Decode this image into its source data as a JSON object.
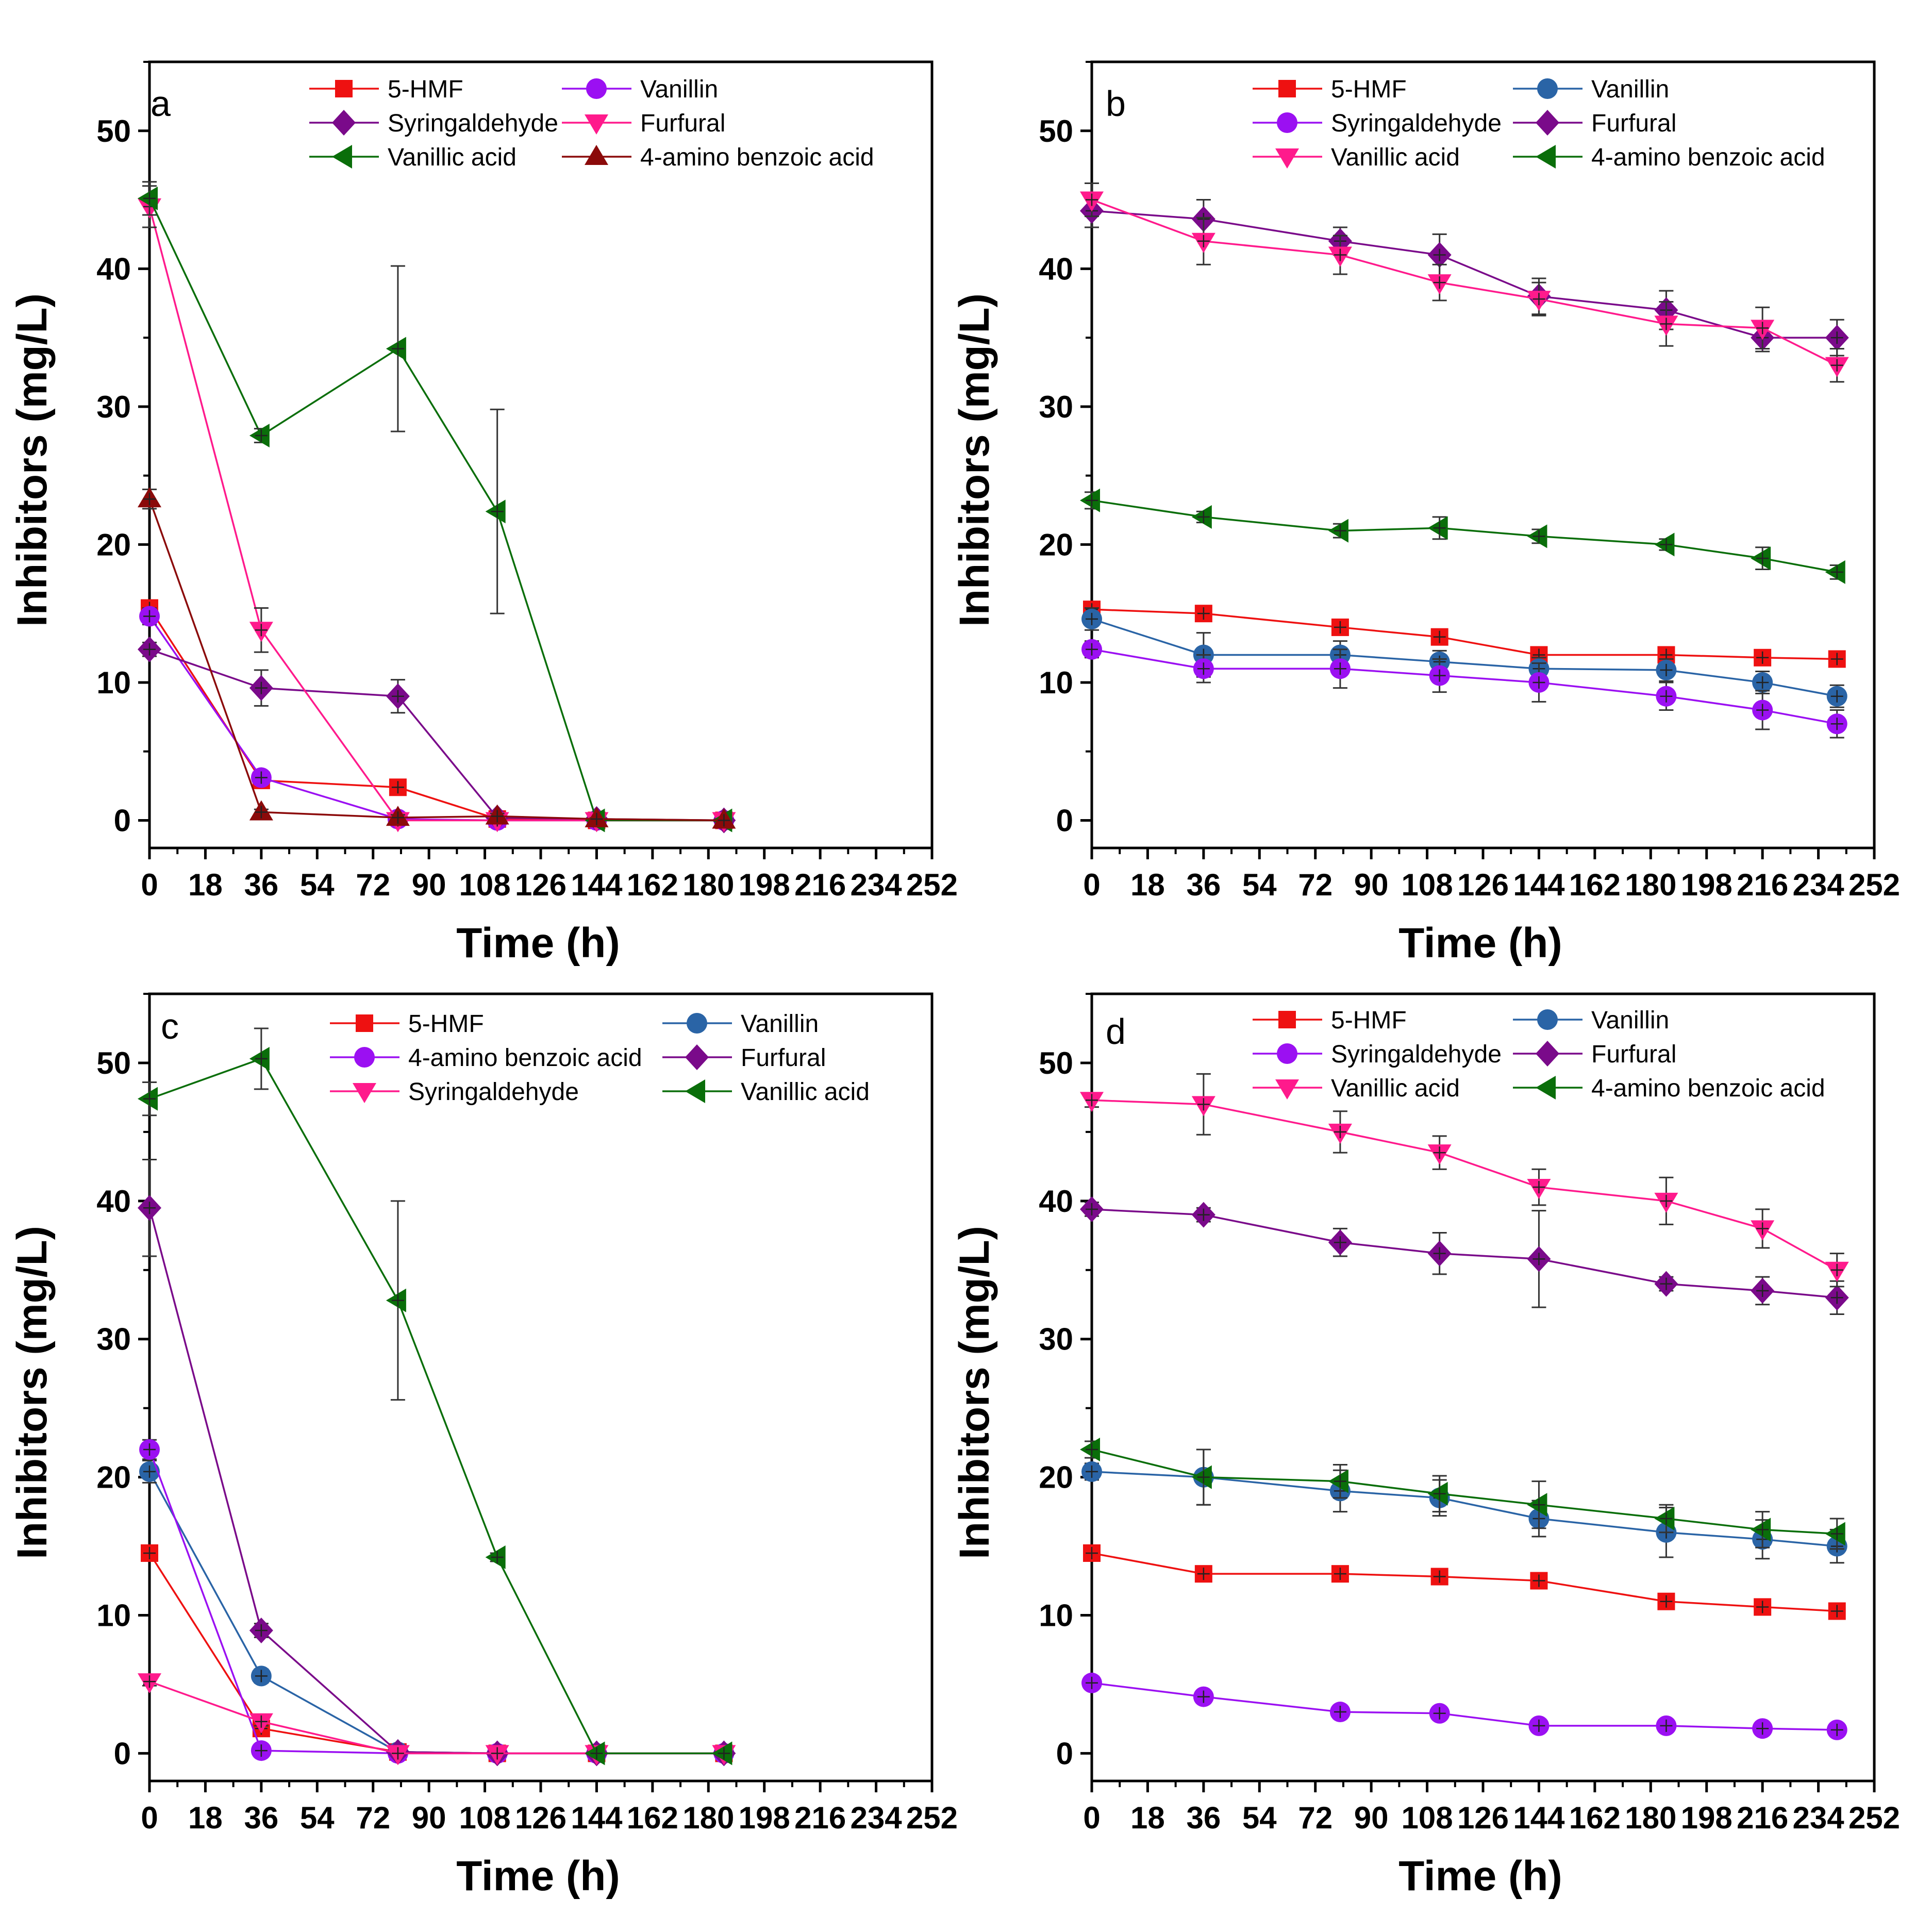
{
  "figure": {
    "colors": {
      "red": "#ee1111",
      "violet": "#9b10f2",
      "purple": "#7a0a8a",
      "pink": "#ff1a8c",
      "green": "#0a6e0a",
      "darkred": "#8b0a0a",
      "blue": "#2a64a6"
    }
  },
  "chart_data": [
    {
      "panel": "a",
      "type": "line",
      "xlabel": "Time (h)",
      "ylabel": "Inhibitors (mg/L)",
      "xlim": [
        0,
        252
      ],
      "ylim": [
        -2,
        55
      ],
      "xticks": [
        "0",
        "18",
        "36",
        "54",
        "72",
        "90",
        "108",
        "126",
        "144",
        "162",
        "180",
        "198",
        "216",
        "234",
        "252"
      ],
      "yticks": [
        "0",
        "10",
        "20",
        "30",
        "40",
        "50"
      ],
      "legend_position": "top",
      "series": [
        {
          "name": "5-HMF",
          "color": "red",
          "marker": "square",
          "x": [
            0,
            36,
            80,
            112,
            144,
            185
          ],
          "y": [
            15.4,
            2.9,
            2.4,
            0.1,
            0,
            0
          ],
          "err": [
            0.5,
            0.4,
            0.3,
            0.1,
            0.1,
            0.1
          ]
        },
        {
          "name": "Vanillin",
          "color": "violet",
          "marker": "circle",
          "x": [
            0,
            36,
            80,
            112,
            144,
            185
          ],
          "y": [
            14.8,
            3.1,
            0.1,
            0,
            0,
            0
          ],
          "err": [
            0.6,
            0.4,
            0.1,
            0.1,
            0.1,
            0.1
          ]
        },
        {
          "name": "Syringaldehyde",
          "color": "purple",
          "marker": "diamond",
          "x": [
            0,
            36,
            80,
            112,
            144,
            185
          ],
          "y": [
            12.4,
            9.6,
            9.0,
            0.2,
            0.1,
            0
          ],
          "err": [
            0.5,
            1.3,
            1.2,
            0.2,
            0.1,
            0.1
          ]
        },
        {
          "name": "Furfural",
          "color": "pink",
          "marker": "tri-down",
          "x": [
            0,
            36,
            80,
            112,
            144,
            185
          ],
          "y": [
            44.5,
            13.8,
            0,
            0,
            0,
            0
          ],
          "err": [
            1.5,
            1.6,
            0.1,
            0.1,
            0.1,
            0.1
          ]
        },
        {
          "name": "Vanillic acid",
          "color": "green",
          "marker": "tri-left",
          "x": [
            0,
            36,
            80,
            112,
            144,
            185
          ],
          "y": [
            45.1,
            27.9,
            34.2,
            22.4,
            0,
            0
          ],
          "err": [
            1.2,
            0.5,
            6.0,
            7.4,
            0.1,
            0.1
          ]
        },
        {
          "name": "4-amino benzoic acid",
          "color": "darkred",
          "marker": "tri-up",
          "x": [
            0,
            36,
            80,
            112,
            144,
            185
          ],
          "y": [
            23.3,
            0.6,
            0.2,
            0.3,
            0.1,
            0
          ],
          "err": [
            0.7,
            0.2,
            0.2,
            0.2,
            0.1,
            0.1
          ]
        }
      ]
    },
    {
      "panel": "b",
      "type": "line",
      "xlabel": "Time (h)",
      "ylabel": "Inhibitors (mg/L)",
      "xlim": [
        0,
        252
      ],
      "ylim": [
        -2,
        55
      ],
      "xticks": [
        "0",
        "18",
        "36",
        "54",
        "72",
        "90",
        "108",
        "126",
        "144",
        "162",
        "180",
        "198",
        "216",
        "234",
        "252"
      ],
      "yticks": [
        "0",
        "10",
        "20",
        "30",
        "40",
        "50"
      ],
      "legend_position": "top",
      "series": [
        {
          "name": "5-HMF",
          "color": "red",
          "marker": "square",
          "x": [
            0,
            36,
            80,
            112,
            144,
            185,
            216,
            240
          ],
          "y": [
            15.3,
            15.0,
            14.0,
            13.3,
            12.0,
            12.0,
            11.8,
            11.7
          ],
          "err": [
            0.5,
            0.5,
            0.5,
            0.5,
            0.4,
            0.5,
            0.4,
            0.4
          ]
        },
        {
          "name": "Vanillin",
          "color": "blue",
          "marker": "circle",
          "x": [
            0,
            36,
            80,
            112,
            144,
            185,
            216,
            240
          ],
          "y": [
            14.6,
            12.0,
            12.0,
            11.5,
            11.0,
            10.9,
            10.0,
            9.0
          ],
          "err": [
            0.8,
            1.6,
            1.0,
            0.8,
            0.8,
            0.8,
            0.8,
            0.8
          ]
        },
        {
          "name": "Syringaldehyde",
          "color": "violet",
          "marker": "circle",
          "x": [
            0,
            36,
            80,
            112,
            144,
            185,
            216,
            240
          ],
          "y": [
            12.4,
            11.0,
            11.0,
            10.5,
            10.0,
            9.0,
            8.0,
            7.0
          ],
          "err": [
            0.6,
            1.0,
            1.4,
            1.2,
            1.4,
            1.0,
            1.4,
            1.0
          ]
        },
        {
          "name": "Furfural",
          "color": "purple",
          "marker": "diamond",
          "x": [
            0,
            36,
            80,
            112,
            144,
            185,
            216,
            240
          ],
          "y": [
            44.2,
            43.6,
            42.0,
            41.0,
            38.0,
            37.0,
            35.0,
            35.0
          ],
          "err": [
            1.2,
            1.4,
            1.0,
            1.5,
            1.3,
            1.4,
            1.0,
            1.3
          ]
        },
        {
          "name": "Vanillic acid",
          "color": "pink",
          "marker": "tri-down",
          "x": [
            0,
            36,
            80,
            112,
            144,
            185,
            216,
            240
          ],
          "y": [
            45.0,
            42.0,
            41.0,
            39.0,
            37.8,
            36.0,
            35.7,
            33.0
          ],
          "err": [
            1.2,
            1.7,
            1.4,
            1.3,
            1.2,
            1.6,
            1.5,
            1.2
          ]
        },
        {
          "name": "4-amino benzoic acid",
          "color": "green",
          "marker": "tri-left",
          "x": [
            0,
            36,
            80,
            112,
            144,
            185,
            216,
            240
          ],
          "y": [
            23.2,
            22.0,
            21.0,
            21.2,
            20.6,
            20.0,
            19.0,
            18.0
          ],
          "err": [
            0.6,
            0.4,
            0.5,
            0.8,
            0.5,
            0.4,
            0.8,
            0.5
          ]
        }
      ]
    },
    {
      "panel": "c",
      "type": "line",
      "xlabel": "Time (h)",
      "ylabel": "Inhibitors (mg/L)",
      "xlim": [
        0,
        252
      ],
      "ylim": [
        -2,
        55
      ],
      "xticks": [
        "0",
        "18",
        "36",
        "54",
        "72",
        "90",
        "108",
        "126",
        "144",
        "162",
        "180",
        "198",
        "216",
        "234",
        "252"
      ],
      "yticks": [
        "0",
        "10",
        "20",
        "30",
        "40",
        "50"
      ],
      "legend_position": "top",
      "series": [
        {
          "name": "5-HMF",
          "color": "red",
          "marker": "square",
          "x": [
            0,
            36,
            80,
            112,
            144,
            185
          ],
          "y": [
            14.5,
            1.8,
            0.1,
            0,
            0,
            0
          ],
          "err": [
            0.4,
            0.5,
            0.1,
            0.1,
            0.1,
            0.1
          ]
        },
        {
          "name": "Vanillin",
          "color": "blue",
          "marker": "circle",
          "x": [
            0,
            36,
            80,
            112,
            144,
            185
          ],
          "y": [
            20.4,
            5.6,
            0.1,
            0,
            0,
            0
          ],
          "err": [
            0.8,
            0.5,
            0.1,
            0.1,
            0.1,
            0.1
          ]
        },
        {
          "name": "4-amino benzoic acid",
          "color": "violet",
          "marker": "circle",
          "x": [
            0,
            36,
            80,
            112,
            144,
            185
          ],
          "y": [
            22.0,
            0.2,
            0,
            0,
            0,
            0
          ],
          "err": [
            0.7,
            0.2,
            0.1,
            0.1,
            0.1,
            0.1
          ]
        },
        {
          "name": "Furfural",
          "color": "purple",
          "marker": "diamond",
          "x": [
            0,
            36,
            80,
            112,
            144,
            185
          ],
          "y": [
            39.5,
            8.9,
            0.1,
            0,
            0,
            0
          ],
          "err": [
            3.5,
            0.5,
            0.1,
            0.1,
            0.1,
            0.1
          ]
        },
        {
          "name": "Syringaldehyde",
          "color": "pink",
          "marker": "tri-down",
          "x": [
            0,
            36,
            80,
            112,
            144,
            185
          ],
          "y": [
            5.2,
            2.3,
            0,
            0,
            0,
            0
          ],
          "err": [
            0.3,
            0.3,
            0.1,
            0.1,
            0.1,
            0.1
          ]
        },
        {
          "name": "Vanillic acid",
          "color": "green",
          "marker": "tri-left",
          "x": [
            0,
            36,
            80,
            112,
            144,
            185
          ],
          "y": [
            47.4,
            50.3,
            32.8,
            14.2,
            0,
            0
          ],
          "err": [
            1.2,
            2.2,
            7.2,
            0.3,
            0.1,
            0.1
          ]
        }
      ]
    },
    {
      "panel": "d",
      "type": "line",
      "xlabel": "Time (h)",
      "ylabel": "Inhibitors (mg/L)",
      "xlim": [
        0,
        252
      ],
      "ylim": [
        -2,
        55
      ],
      "xticks": [
        "0",
        "18",
        "36",
        "54",
        "72",
        "90",
        "108",
        "126",
        "144",
        "162",
        "180",
        "198",
        "216",
        "234",
        "252"
      ],
      "yticks": [
        "0",
        "10",
        "20",
        "30",
        "40",
        "50"
      ],
      "legend_position": "top",
      "series": [
        {
          "name": "5-HMF",
          "color": "red",
          "marker": "square",
          "x": [
            0,
            36,
            80,
            112,
            144,
            185,
            216,
            240
          ],
          "y": [
            14.5,
            13.0,
            13.0,
            12.8,
            12.5,
            11.0,
            10.6,
            10.3
          ],
          "err": [
            0.4,
            0.4,
            0.4,
            0.4,
            0.4,
            0.5,
            0.4,
            0.4
          ]
        },
        {
          "name": "Vanillin",
          "color": "blue",
          "marker": "circle",
          "x": [
            0,
            36,
            80,
            112,
            144,
            185,
            216,
            240
          ],
          "y": [
            20.4,
            20.0,
            19.0,
            18.5,
            17.0,
            16.0,
            15.5,
            15.0
          ],
          "err": [
            0.6,
            2.0,
            1.5,
            1.3,
            1.3,
            1.8,
            1.4,
            1.2
          ]
        },
        {
          "name": "Syringaldehyde",
          "color": "violet",
          "marker": "circle",
          "x": [
            0,
            36,
            80,
            112,
            144,
            185,
            216,
            240
          ],
          "y": [
            5.1,
            4.1,
            3.0,
            2.9,
            2.0,
            2.0,
            1.8,
            1.7
          ],
          "err": [
            0.3,
            0.3,
            0.3,
            0.3,
            0.3,
            0.3,
            0.3,
            0.3
          ]
        },
        {
          "name": "Furfural",
          "color": "purple",
          "marker": "diamond",
          "x": [
            0,
            36,
            80,
            112,
            144,
            185,
            216,
            240
          ],
          "y": [
            39.4,
            39.0,
            37.0,
            36.2,
            35.8,
            34.0,
            33.5,
            33.0
          ],
          "err": [
            0.5,
            0.5,
            1.0,
            1.5,
            3.5,
            0.5,
            1.0,
            1.2
          ]
        },
        {
          "name": "Vanillic acid",
          "color": "pink",
          "marker": "tri-down",
          "x": [
            0,
            36,
            80,
            112,
            144,
            185,
            216,
            240
          ],
          "y": [
            47.3,
            47.0,
            45.0,
            43.5,
            41.0,
            40.0,
            38.0,
            35.0
          ],
          "err": [
            0.5,
            2.2,
            1.5,
            1.2,
            1.3,
            1.7,
            1.4,
            1.2
          ]
        },
        {
          "name": "4-amino benzoic acid",
          "color": "green",
          "marker": "tri-left",
          "x": [
            0,
            36,
            80,
            112,
            144,
            185,
            216,
            240
          ],
          "y": [
            22.0,
            20.0,
            19.7,
            18.8,
            18.0,
            17.0,
            16.2,
            15.9
          ],
          "err": [
            0.6,
            2.0,
            1.2,
            1.3,
            1.7,
            1.0,
            1.3,
            1.1
          ]
        }
      ]
    }
  ]
}
